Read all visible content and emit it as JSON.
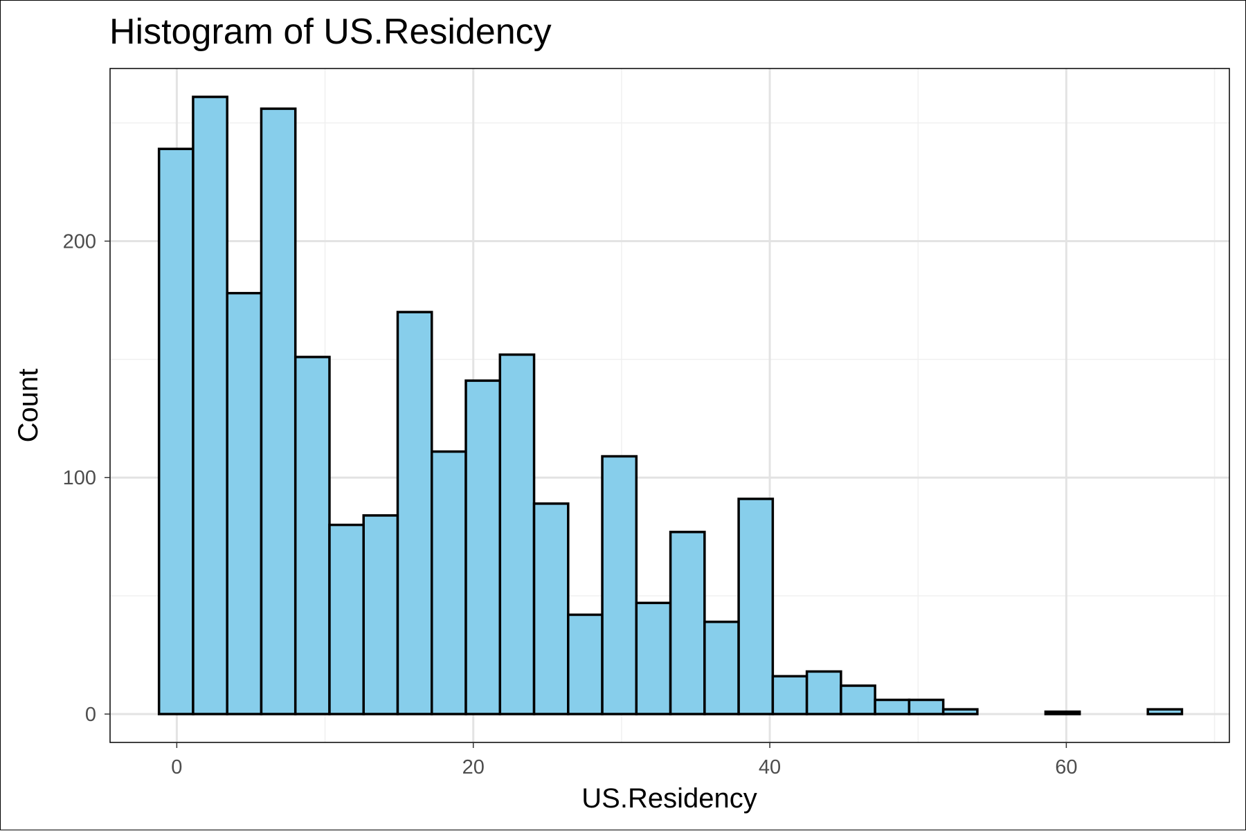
{
  "chart_data": {
    "type": "bar",
    "title": "Histogram of US.Residency",
    "xlabel": "US.Residency",
    "ylabel": "Count",
    "xlim": [
      -4.5,
      71
    ],
    "ylim": [
      -12,
      273
    ],
    "x_ticks": [
      0,
      20,
      40,
      60
    ],
    "y_ticks": [
      0,
      100,
      200
    ],
    "grid": true,
    "bin_width": 2.3,
    "bins": [
      {
        "start": -1.2,
        "end": 1.1,
        "count": 239
      },
      {
        "start": 1.1,
        "end": 3.4,
        "count": 261
      },
      {
        "start": 3.4,
        "end": 5.7,
        "count": 178
      },
      {
        "start": 5.7,
        "end": 8.0,
        "count": 256
      },
      {
        "start": 8.0,
        "end": 10.3,
        "count": 151
      },
      {
        "start": 10.3,
        "end": 12.6,
        "count": 80
      },
      {
        "start": 12.6,
        "end": 14.9,
        "count": 84
      },
      {
        "start": 14.9,
        "end": 17.2,
        "count": 170
      },
      {
        "start": 17.2,
        "end": 19.5,
        "count": 111
      },
      {
        "start": 19.5,
        "end": 21.8,
        "count": 141
      },
      {
        "start": 21.8,
        "end": 24.1,
        "count": 152
      },
      {
        "start": 24.1,
        "end": 26.4,
        "count": 89
      },
      {
        "start": 26.4,
        "end": 28.7,
        "count": 42
      },
      {
        "start": 28.7,
        "end": 31.0,
        "count": 109
      },
      {
        "start": 31.0,
        "end": 33.3,
        "count": 47
      },
      {
        "start": 33.3,
        "end": 35.6,
        "count": 77
      },
      {
        "start": 35.6,
        "end": 37.9,
        "count": 39
      },
      {
        "start": 37.9,
        "end": 40.2,
        "count": 91
      },
      {
        "start": 40.2,
        "end": 42.5,
        "count": 16
      },
      {
        "start": 42.5,
        "end": 44.8,
        "count": 18
      },
      {
        "start": 44.8,
        "end": 47.1,
        "count": 12
      },
      {
        "start": 47.1,
        "end": 49.4,
        "count": 6
      },
      {
        "start": 49.4,
        "end": 51.7,
        "count": 6
      },
      {
        "start": 51.7,
        "end": 54.0,
        "count": 2
      },
      {
        "start": 54.0,
        "end": 56.3,
        "count": 0
      },
      {
        "start": 56.3,
        "end": 58.6,
        "count": 0
      },
      {
        "start": 58.6,
        "end": 60.9,
        "count": 1
      },
      {
        "start": 60.9,
        "end": 63.2,
        "count": 0
      },
      {
        "start": 63.2,
        "end": 65.5,
        "count": 0
      },
      {
        "start": 65.5,
        "end": 67.8,
        "count": 2
      }
    ],
    "colors": {
      "bar_fill": "#87CEEB",
      "bar_stroke": "#000000"
    }
  }
}
